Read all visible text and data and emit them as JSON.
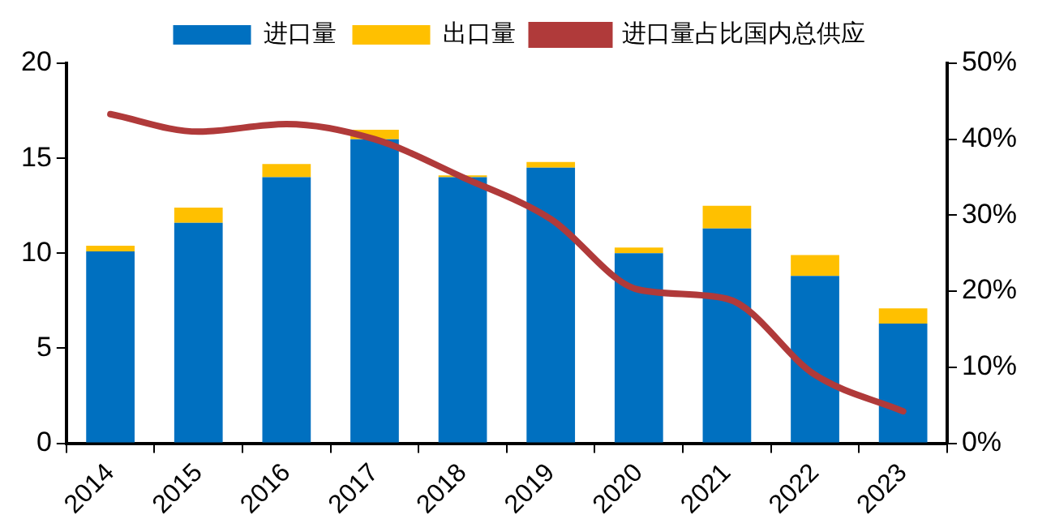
{
  "chart_data": {
    "type": "bar",
    "stacked": true,
    "categories": [
      "2014",
      "2015",
      "2016",
      "2017",
      "2018",
      "2019",
      "2020",
      "2021",
      "2022",
      "2023"
    ],
    "series": [
      {
        "name": "进口量",
        "color": "#0070c0",
        "values": [
          10.1,
          11.6,
          14.0,
          16.0,
          14.0,
          14.5,
          10.0,
          11.3,
          8.8,
          6.3
        ]
      },
      {
        "name": "出口量",
        "color": "#ffc000",
        "values": [
          0.3,
          0.8,
          0.7,
          0.5,
          0.1,
          0.3,
          0.3,
          1.2,
          1.1,
          0.8
        ]
      },
      {
        "name": "进口量占比国内总供应",
        "type": "line",
        "axis": "y2",
        "color": "#b03a3a",
        "values": [
          43.3,
          41,
          42,
          40,
          35,
          29.5,
          20.2,
          19,
          9,
          4.2
        ]
      }
    ],
    "ylim": [
      0,
      20
    ],
    "yticks": [
      0,
      5,
      10,
      15,
      20
    ],
    "y2lim": [
      0,
      50
    ],
    "y2ticks": [
      {
        "value": 0,
        "label": "0%"
      },
      {
        "value": 10,
        "label": "10%"
      },
      {
        "value": 20,
        "label": "20%"
      },
      {
        "value": 30,
        "label": "30%"
      },
      {
        "value": 40,
        "label": "40%"
      },
      {
        "value": 50,
        "label": "50%"
      }
    ],
    "grid": false,
    "legend": "top",
    "marker": "none"
  }
}
